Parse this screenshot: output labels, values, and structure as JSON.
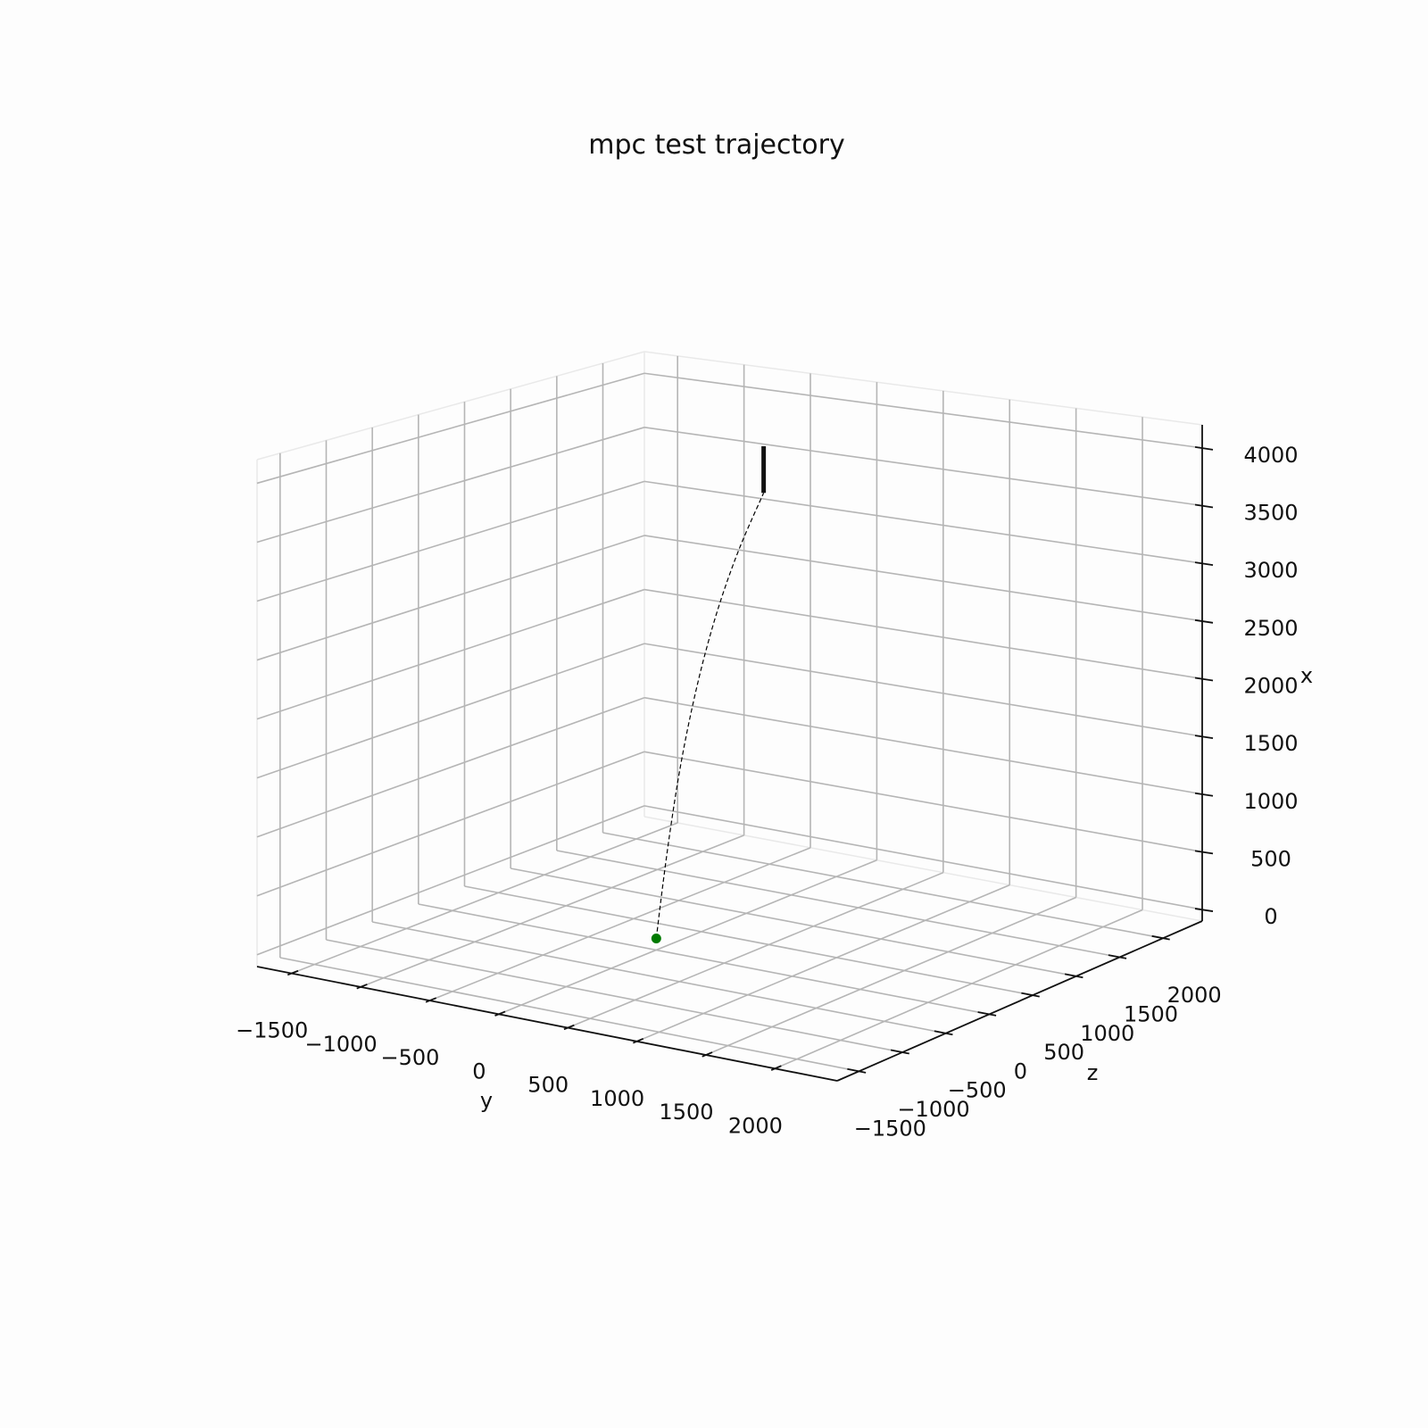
{
  "chart_data": {
    "type": "line3d",
    "title": "mpc test trajectory",
    "axes": {
      "y": {
        "label": "y",
        "range": [
          -1750,
          2450
        ],
        "ticks": [
          -1500,
          -1000,
          -500,
          0,
          500,
          1000,
          1500,
          2000
        ],
        "tick_labels": [
          "−1500",
          "−1000",
          "−500",
          "0",
          "500",
          "1000",
          "1500",
          "2000"
        ]
      },
      "z": {
        "label": "z",
        "range": [
          -1750,
          2450
        ],
        "ticks": [
          -1500,
          -1000,
          -500,
          0,
          500,
          1000,
          1500,
          2000
        ],
        "tick_labels": [
          "−1500",
          "−1000",
          "−500",
          "0",
          "500",
          "1000",
          "1500",
          "2000"
        ]
      },
      "x": {
        "label": "x",
        "range": [
          -100,
          4200
        ],
        "ticks": [
          0,
          500,
          1000,
          1500,
          2000,
          2500,
          3000,
          3500,
          4000
        ],
        "tick_labels": [
          "0",
          "500",
          "1000",
          "1500",
          "2000",
          "2500",
          "3000",
          "3500",
          "4000"
        ]
      }
    },
    "grid": true,
    "series": [
      {
        "style": "dashed",
        "color": "#000000",
        "points": [
          {
            "x": 0,
            "y": 0,
            "z": 0
          },
          {
            "x": 500,
            "y": 51,
            "z": 0
          },
          {
            "x": 1000,
            "y": 108,
            "z": 0
          },
          {
            "x": 1500,
            "y": 174,
            "z": 0
          },
          {
            "x": 2000,
            "y": 255,
            "z": 0
          },
          {
            "x": 2500,
            "y": 352,
            "z": 0
          },
          {
            "x": 3000,
            "y": 470,
            "z": 0
          },
          {
            "x": 3500,
            "y": 615,
            "z": 0
          },
          {
            "x": 4000,
            "y": 790,
            "z": 0
          }
        ]
      },
      {
        "style": "solid-thick",
        "color": "#111111",
        "points": [
          {
            "x": 4000,
            "y": 790,
            "z": 0
          },
          {
            "x": 4400,
            "y": 790,
            "z": 0
          }
        ]
      }
    ],
    "markers": [
      {
        "x": 0,
        "y": 0,
        "z": 0,
        "color": "#007a00"
      }
    ]
  }
}
